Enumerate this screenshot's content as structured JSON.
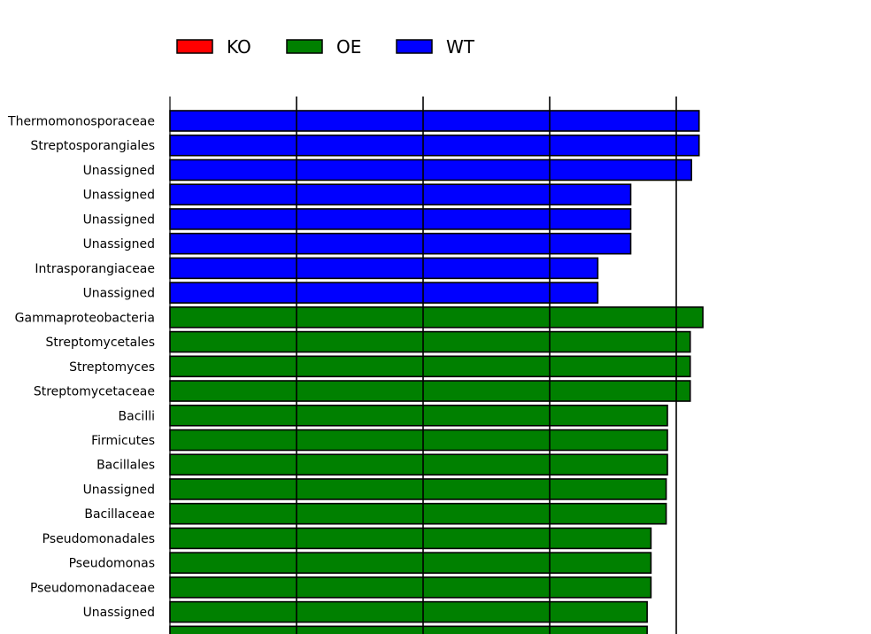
{
  "chart_data": {
    "type": "bar",
    "orientation": "horizontal",
    "legend": {
      "placement": "top-left",
      "entries": [
        {
          "name": "KO",
          "color": "#ff0000"
        },
        {
          "name": "OE",
          "color": "#008000"
        },
        {
          "name": "WT",
          "color": "#0000ff"
        }
      ]
    },
    "xlim": [
      0,
      5.6
    ],
    "grid": "vertical",
    "x_gridlines": [
      0,
      1,
      2,
      3,
      4
    ],
    "bars": [
      {
        "label": "Thermomonosporaceae",
        "group": "WT",
        "value": 4.18
      },
      {
        "label": "Streptosporangiales",
        "group": "WT",
        "value": 4.18
      },
      {
        "label": "Unassigned",
        "group": "WT",
        "value": 4.12
      },
      {
        "label": "Unassigned",
        "group": "WT",
        "value": 3.64
      },
      {
        "label": "Unassigned",
        "group": "WT",
        "value": 3.64
      },
      {
        "label": "Unassigned",
        "group": "WT",
        "value": 3.64
      },
      {
        "label": "Intrasporangiaceae",
        "group": "WT",
        "value": 3.38
      },
      {
        "label": "Unassigned",
        "group": "WT",
        "value": 3.38
      },
      {
        "label": "Gammaproteobacteria",
        "group": "OE",
        "value": 4.21
      },
      {
        "label": "Streptomycetales",
        "group": "OE",
        "value": 4.11
      },
      {
        "label": "Streptomyces",
        "group": "OE",
        "value": 4.11
      },
      {
        "label": "Streptomycetaceae",
        "group": "OE",
        "value": 4.11
      },
      {
        "label": "Bacilli",
        "group": "OE",
        "value": 3.93
      },
      {
        "label": "Firmicutes",
        "group": "OE",
        "value": 3.93
      },
      {
        "label": "Bacillales",
        "group": "OE",
        "value": 3.93
      },
      {
        "label": "Unassigned",
        "group": "OE",
        "value": 3.92
      },
      {
        "label": "Bacillaceae",
        "group": "OE",
        "value": 3.92
      },
      {
        "label": "Pseudomonadales",
        "group": "OE",
        "value": 3.8
      },
      {
        "label": "Pseudomonas",
        "group": "OE",
        "value": 3.8
      },
      {
        "label": "Pseudomonadaceae",
        "group": "OE",
        "value": 3.8
      },
      {
        "label": "Unassigned",
        "group": "OE",
        "value": 3.77
      },
      {
        "label": "",
        "group": "OE",
        "value": 3.77
      }
    ]
  }
}
